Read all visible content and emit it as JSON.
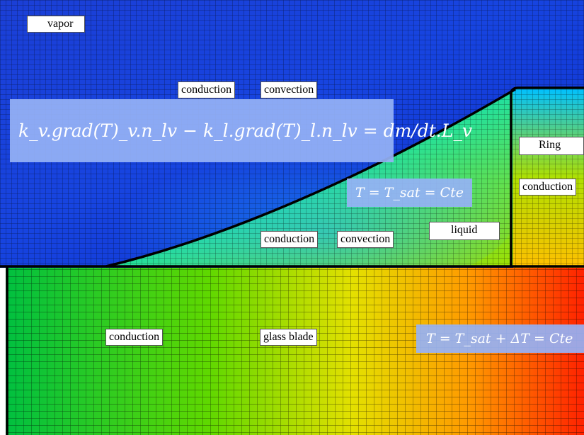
{
  "labels": {
    "vapor": "vapor",
    "conduction_vapor": "conduction",
    "convection_vapor": "convection",
    "ring": "Ring",
    "conduction_ring": "conduction",
    "conduction_liquid": "conduction",
    "convection_liquid": "convection",
    "liquid": "liquid",
    "conduction_glass": "conduction",
    "glass_blade": "glass blade"
  },
  "equations": {
    "interface_balance": "k_v.grad(T)_v.n_lv − k_l.grad(T)_l.n_lv = dm/dt.L_v",
    "saturation": "T = T_sat = Cte",
    "superheat": "T = T_sat + ΔT = Cte"
  }
}
